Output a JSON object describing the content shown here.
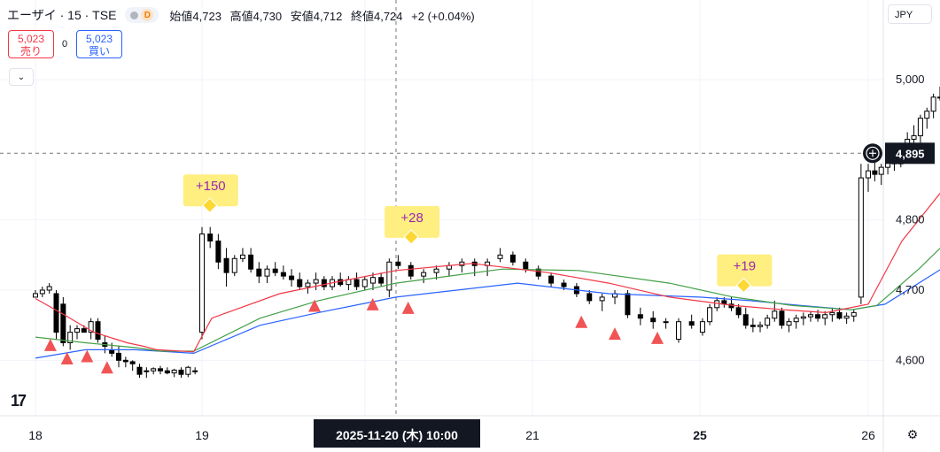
{
  "header": {
    "symbol": "エーザイ · 15 · TSE",
    "d_badge": "D",
    "open_label": "始値",
    "open_value": "4,723",
    "high_label": "高値",
    "high_value": "4,730",
    "low_label": "安値",
    "low_value": "4,712",
    "close_label": "終値",
    "close_value": "4,724",
    "change": "+2 (+0.04%)"
  },
  "trade": {
    "sell_price": "5,023",
    "sell_label": "売り",
    "spread": "0",
    "buy_price": "5,023",
    "buy_label": "買い"
  },
  "currency": "JPY",
  "crosshair_label": "2025-11-20 (木)   10:00",
  "icons": {
    "collapse": "chevron-down-icon",
    "plus": "plus-circle-icon",
    "settings": "gear-icon",
    "logo": "tradingview-logo"
  },
  "colors": {
    "up_body": "#ffffff",
    "down_body": "#000000",
    "ma_fast": "#f23645",
    "ma_mid": "#43a047",
    "ma_slow": "#2962ff",
    "signal": "#f05454",
    "badge": "#ffee80",
    "badge_text": "#9c27b0",
    "diamond": "#fdd835"
  },
  "chart_data": {
    "type": "candlestick",
    "y_ticks": [
      4600,
      4700,
      4800,
      5000
    ],
    "y_tick_labels": [
      "4,600",
      "4,700",
      "4,800",
      "5,000"
    ],
    "ylim": [
      4560,
      5040
    ],
    "current_price": 4895,
    "current_price_label": "4,895",
    "x_tick_labels": [
      {
        "label": "18",
        "bold": false,
        "pos": 0
      },
      {
        "label": "19",
        "bold": false,
        "pos": 1
      },
      {
        "label": "21",
        "bold": false,
        "pos": 3
      },
      {
        "label": "25",
        "bold": true,
        "pos": 4
      },
      {
        "label": "26",
        "bold": false,
        "pos": 5
      }
    ],
    "candles": [
      [
        4690,
        4700,
        4690,
        4695
      ],
      [
        4695,
        4705,
        4690,
        4700
      ],
      [
        4700,
        4710,
        4695,
        4705
      ],
      [
        4695,
        4700,
        4630,
        4640
      ],
      [
        4680,
        4690,
        4620,
        4625
      ],
      [
        4625,
        4650,
        4615,
        4640
      ],
      [
        4640,
        4650,
        4630,
        4645
      ],
      [
        4645,
        4650,
        4640,
        4640
      ],
      [
        4640,
        4660,
        4630,
        4655
      ],
      [
        4655,
        4660,
        4625,
        4630
      ],
      [
        4625,
        4635,
        4610,
        4620
      ],
      [
        4615,
        4625,
        4605,
        4610
      ],
      [
        4610,
        4620,
        4590,
        4600
      ],
      [
        4600,
        4605,
        4590,
        4598
      ],
      [
        4598,
        4600,
        4585,
        4595
      ],
      [
        4590,
        4595,
        4575,
        4580
      ],
      [
        4585,
        4590,
        4575,
        4585
      ],
      [
        4585,
        4590,
        4580,
        4588
      ],
      [
        4588,
        4592,
        4580,
        4585
      ],
      [
        4585,
        4590,
        4580,
        4582
      ],
      [
        4582,
        4588,
        4576,
        4586
      ],
      [
        4586,
        4590,
        4575,
        4580
      ],
      [
        4580,
        4592,
        4576,
        4590
      ],
      [
        4585,
        4590,
        4580,
        4585
      ],
      [
        4640,
        4790,
        4630,
        4780
      ],
      [
        4780,
        4790,
        4760,
        4770
      ],
      [
        4770,
        4780,
        4730,
        4740
      ],
      [
        4745,
        4760,
        4705,
        4725
      ],
      [
        4725,
        4750,
        4720,
        4745
      ],
      [
        4745,
        4760,
        4740,
        4750
      ],
      [
        4750,
        4760,
        4725,
        4730
      ],
      [
        4730,
        4740,
        4710,
        4720
      ],
      [
        4720,
        4735,
        4710,
        4730
      ],
      [
        4730,
        4740,
        4720,
        4725
      ],
      [
        4725,
        4735,
        4715,
        4720
      ],
      [
        4720,
        4730,
        4705,
        4715
      ],
      [
        4715,
        4725,
        4700,
        4705
      ],
      [
        4705,
        4715,
        4695,
        4710
      ],
      [
        4710,
        4725,
        4700,
        4715
      ],
      [
        4715,
        4720,
        4700,
        4705
      ],
      [
        4705,
        4720,
        4700,
        4715
      ],
      [
        4715,
        4725,
        4705,
        4708
      ],
      [
        4708,
        4720,
        4700,
        4715
      ],
      [
        4715,
        4725,
        4700,
        4705
      ],
      [
        4705,
        4720,
        4700,
        4715
      ],
      [
        4710,
        4725,
        4700,
        4718
      ],
      [
        4718,
        4725,
        4705,
        4710
      ],
      [
        4700,
        4745,
        4690,
        4740
      ],
      [
        4740,
        4750,
        4730,
        4735
      ],
      [
        4735,
        4740,
        4715,
        4720
      ],
      [
        4720,
        4730,
        4710,
        4725
      ],
      [
        4725,
        4735,
        4715,
        4730
      ],
      [
        4730,
        4740,
        4720,
        4735
      ],
      [
        4735,
        4745,
        4725,
        4740
      ],
      [
        4740,
        4745,
        4720,
        4735
      ],
      [
        4735,
        4745,
        4720,
        4740
      ],
      [
        4745,
        4760,
        4740,
        4750
      ],
      [
        4750,
        4755,
        4735,
        4740
      ],
      [
        4740,
        4745,
        4725,
        4730
      ],
      [
        4730,
        4735,
        4715,
        4720
      ],
      [
        4720,
        4725,
        4705,
        4710
      ],
      [
        4710,
        4715,
        4700,
        4705
      ],
      [
        4705,
        4710,
        4690,
        4695
      ],
      [
        4695,
        4700,
        4680,
        4685
      ],
      [
        4685,
        4695,
        4670,
        4690
      ],
      [
        4690,
        4700,
        4680,
        4695
      ],
      [
        4695,
        4700,
        4660,
        4665
      ],
      [
        4665,
        4675,
        4650,
        4660
      ],
      [
        4660,
        4670,
        4645,
        4655
      ],
      [
        4655,
        4660,
        4645,
        4655
      ],
      [
        4630,
        4660,
        4625,
        4655
      ],
      [
        4655,
        4665,
        4645,
        4650
      ],
      [
        4640,
        4660,
        4635,
        4655
      ],
      [
        4655,
        4680,
        4650,
        4675
      ],
      [
        4675,
        4690,
        4670,
        4685
      ],
      [
        4685,
        4690,
        4675,
        4680
      ],
      [
        4680,
        4690,
        4670,
        4675
      ],
      [
        4675,
        4680,
        4660,
        4665
      ],
      [
        4665,
        4675,
        4645,
        4650
      ],
      [
        4650,
        4660,
        4640,
        4648
      ],
      [
        4648,
        4655,
        4640,
        4650
      ],
      [
        4650,
        4665,
        4645,
        4660
      ],
      [
        4660,
        4685,
        4655,
        4670
      ],
      [
        4670,
        4675,
        4645,
        4650
      ],
      [
        4650,
        4660,
        4640,
        4655
      ],
      [
        4655,
        4665,
        4645,
        4660
      ],
      [
        4660,
        4668,
        4650,
        4662
      ],
      [
        4662,
        4670,
        4655,
        4665
      ],
      [
        4665,
        4672,
        4655,
        4660
      ],
      [
        4660,
        4670,
        4650,
        4665
      ],
      [
        4665,
        4675,
        4655,
        4668
      ],
      [
        4668,
        4675,
        4658,
        4660
      ],
      [
        4660,
        4668,
        4652,
        4663
      ],
      [
        4663,
        4672,
        4655,
        4668
      ],
      [
        4690,
        4880,
        4680,
        4860
      ],
      [
        4860,
        4880,
        4840,
        4870
      ],
      [
        4870,
        4885,
        4855,
        4865
      ],
      [
        4865,
        4880,
        4850,
        4875
      ],
      [
        4875,
        4895,
        4865,
        4885
      ],
      [
        4885,
        4900,
        4870,
        4880
      ],
      [
        4880,
        4910,
        4875,
        4900
      ],
      [
        4900,
        4925,
        4890,
        4915
      ],
      [
        4915,
        4935,
        4900,
        4920
      ],
      [
        4920,
        4950,
        4910,
        4945
      ],
      [
        4945,
        4960,
        4930,
        4955
      ],
      [
        4955,
        4980,
        4945,
        4975
      ],
      [
        4975,
        4990,
        4970,
        4975
      ],
      [
        4980,
        5025,
        4970,
        5015
      ],
      [
        5015,
        5020,
        4990,
        5010
      ],
      [
        5010,
        5025,
        5000,
        5020
      ],
      [
        5020,
        5030,
        5010,
        5025
      ],
      [
        5025,
        5030,
        4970,
        4980
      ],
      [
        4980,
        4995,
        4975,
        4990
      ],
      [
        4990,
        4995,
        4980,
        4985
      ],
      [
        4985,
        4995,
        4978,
        4990
      ],
      [
        4990,
        4998,
        4975,
        4985
      ],
      [
        4985,
        4995,
        4965,
        4990
      ],
      [
        4990,
        5025,
        4985,
        5015
      ],
      [
        5015,
        5025,
        4995,
        5005
      ]
    ],
    "ma_fast": [
      [
        0,
        4688
      ],
      [
        0.15,
        4668
      ],
      [
        0.35,
        4640
      ],
      [
        0.55,
        4625
      ],
      [
        0.65,
        4620
      ],
      [
        0.73,
        4615
      ],
      [
        0.95,
        4612
      ],
      [
        1.05,
        4660
      ],
      [
        1.4,
        4695
      ],
      [
        1.7,
        4712
      ],
      [
        2.0,
        4728
      ],
      [
        2.25,
        4738
      ],
      [
        2.5,
        4725
      ],
      [
        2.7,
        4710
      ],
      [
        2.9,
        4690
      ],
      [
        3.2,
        4678
      ],
      [
        3.5,
        4672
      ],
      [
        3.75,
        4668
      ],
      [
        4.0,
        4680
      ],
      [
        4.2,
        4770
      ],
      [
        4.5,
        4860
      ],
      [
        4.75,
        4920
      ],
      [
        5.0,
        4950
      ]
    ],
    "ma_mid": [
      [
        0,
        4633
      ],
      [
        0.3,
        4625
      ],
      [
        0.6,
        4618
      ],
      [
        0.75,
        4613
      ],
      [
        0.95,
        4613
      ],
      [
        1.3,
        4660
      ],
      [
        1.6,
        4685
      ],
      [
        2.0,
        4710
      ],
      [
        2.35,
        4730
      ],
      [
        2.6,
        4728
      ],
      [
        2.9,
        4710
      ],
      [
        3.2,
        4690
      ],
      [
        3.55,
        4678
      ],
      [
        3.9,
        4672
      ],
      [
        4.05,
        4678
      ],
      [
        4.3,
        4730
      ],
      [
        4.6,
        4800
      ],
      [
        4.9,
        4850
      ],
      [
        5.0,
        4880
      ]
    ],
    "ma_slow": [
      [
        0,
        4603
      ],
      [
        0.3,
        4615
      ],
      [
        0.6,
        4615
      ],
      [
        0.95,
        4610
      ],
      [
        1.3,
        4650
      ],
      [
        1.6,
        4668
      ],
      [
        2.0,
        4690
      ],
      [
        2.4,
        4710
      ],
      [
        2.7,
        4695
      ],
      [
        3.0,
        4690
      ],
      [
        3.3,
        4685
      ],
      [
        3.6,
        4678
      ],
      [
        3.9,
        4672
      ],
      [
        4.1,
        4680
      ],
      [
        4.5,
        4740
      ],
      [
        4.85,
        4800
      ],
      [
        5.0,
        4835
      ]
    ],
    "signals": [
      [
        0.09,
        4622
      ],
      [
        0.19,
        4603
      ],
      [
        0.31,
        4606
      ],
      [
        0.43,
        4590
      ],
      [
        1.58,
        4678
      ],
      [
        1.88,
        4680
      ],
      [
        2.04,
        4675
      ],
      [
        2.61,
        4655
      ],
      [
        2.72,
        4638
      ],
      [
        2.86,
        4632
      ]
    ],
    "profit_labels": [
      {
        "text": "+150",
        "t": 1.04,
        "price": 4822
      },
      {
        "text": "+28",
        "t": 2.05,
        "price": 4777
      },
      {
        "text": "+19",
        "t": 3.26,
        "price": 4708
      }
    ]
  }
}
